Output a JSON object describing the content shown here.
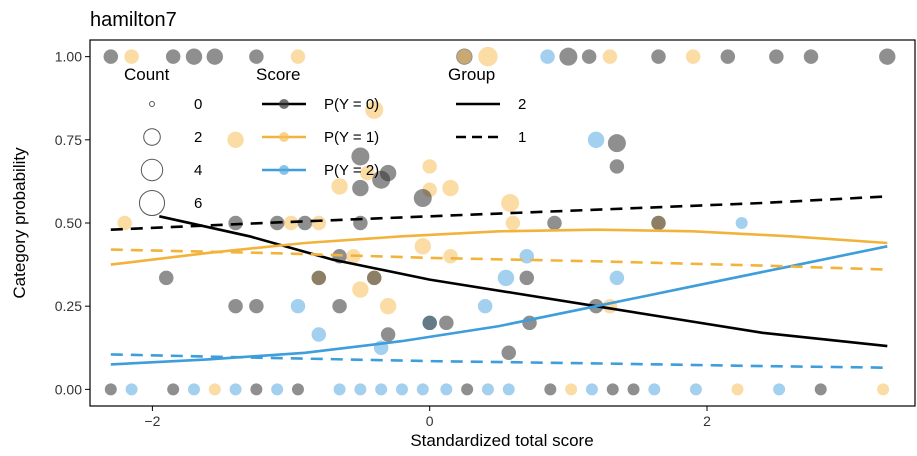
{
  "chart_data": {
    "type": "scatter",
    "title": "hamilton7",
    "xlabel": "Standardized total score",
    "ylabel": "Category probability",
    "xlim": [
      -2.45,
      3.5
    ],
    "ylim": [
      -0.05,
      1.05
    ],
    "x_ticks": [
      {
        "v": -2,
        "label": "−2"
      },
      {
        "v": 0,
        "label": "0"
      },
      {
        "v": 2,
        "label": "2"
      }
    ],
    "y_ticks": [
      {
        "v": 0,
        "label": "0.00"
      },
      {
        "v": 0.25,
        "label": "0.25"
      },
      {
        "v": 0.5,
        "label": "0.50"
      },
      {
        "v": 0.75,
        "label": "0.75"
      },
      {
        "v": 1,
        "label": "1.00"
      }
    ],
    "grid": false,
    "colors": {
      "score0": "#333333",
      "score1": "#f7c05a",
      "score2": "#56a9e0",
      "line0": "#000000",
      "line1": "#f2b33d",
      "line2": "#3e9ddb"
    },
    "legend": {
      "position": "top-left inside",
      "count": {
        "title": "Count",
        "entries": [
          {
            "label": "0",
            "size": 0
          },
          {
            "label": "2",
            "size": 2
          },
          {
            "label": "4",
            "size": 4
          },
          {
            "label": "6",
            "size": 6
          }
        ]
      },
      "score": {
        "title": "Score",
        "entries": [
          {
            "label": "P(Y = 0)",
            "key": "score0"
          },
          {
            "label": "P(Y = 1)",
            "key": "score1"
          },
          {
            "label": "P(Y = 2)",
            "key": "score2"
          }
        ]
      },
      "group": {
        "title": "Group",
        "entries": [
          {
            "label": "2",
            "dash": "solid"
          },
          {
            "label": "1",
            "dash": "dashed"
          }
        ]
      }
    },
    "series": [
      {
        "score": 0,
        "group": 2,
        "dash": "solid",
        "x": [
          -1.95,
          -1.3,
          -0.7,
          0,
          0.6,
          1.2,
          1.8,
          2.4,
          3.3
        ],
        "y": [
          0.52,
          0.46,
          0.39,
          0.33,
          0.29,
          0.25,
          0.21,
          0.17,
          0.13
        ]
      },
      {
        "score": 1,
        "group": 2,
        "dash": "solid",
        "x": [
          -2.3,
          -1.6,
          -0.9,
          -0.2,
          0.5,
          1.2,
          1.9,
          2.6,
          3.3
        ],
        "y": [
          0.375,
          0.41,
          0.44,
          0.46,
          0.475,
          0.48,
          0.475,
          0.46,
          0.44
        ]
      },
      {
        "score": 2,
        "group": 2,
        "dash": "solid",
        "x": [
          -2.3,
          -1.6,
          -0.9,
          -0.2,
          0.5,
          1.2,
          1.9,
          2.6,
          3.3
        ],
        "y": [
          0.075,
          0.09,
          0.11,
          0.145,
          0.19,
          0.25,
          0.31,
          0.37,
          0.43
        ]
      },
      {
        "score": 0,
        "group": 1,
        "dash": "dashed",
        "x": [
          -2.3,
          -1.2,
          0,
          1.2,
          2.4,
          3.3
        ],
        "y": [
          0.48,
          0.5,
          0.52,
          0.54,
          0.56,
          0.58
        ]
      },
      {
        "score": 1,
        "group": 1,
        "dash": "dashed",
        "x": [
          -2.3,
          -1.2,
          0,
          1.2,
          2.4,
          3.3
        ],
        "y": [
          0.42,
          0.41,
          0.395,
          0.385,
          0.372,
          0.36
        ]
      },
      {
        "score": 2,
        "group": 1,
        "dash": "dashed",
        "x": [
          -2.3,
          -1.2,
          0,
          1.2,
          2.4,
          3.3
        ],
        "y": [
          0.105,
          0.095,
          0.085,
          0.078,
          0.07,
          0.065
        ]
      }
    ],
    "points": [
      {
        "x": -2.3,
        "y": 1.0,
        "c": "score0",
        "n": 2
      },
      {
        "x": -2.15,
        "y": 1.0,
        "c": "score1",
        "n": 2
      },
      {
        "x": -1.85,
        "y": 1.0,
        "c": "score0",
        "n": 2
      },
      {
        "x": -1.7,
        "y": 1.0,
        "c": "score0",
        "n": 3
      },
      {
        "x": -1.55,
        "y": 1.0,
        "c": "score0",
        "n": 3
      },
      {
        "x": -1.25,
        "y": 1.0,
        "c": "score0",
        "n": 2
      },
      {
        "x": -0.95,
        "y": 1.0,
        "c": "score1",
        "n": 2
      },
      {
        "x": 0.25,
        "y": 1.0,
        "c": "score0",
        "n": 3
      },
      {
        "x": 0.25,
        "y": 1.0,
        "c": "score1",
        "n": 2
      },
      {
        "x": 0.42,
        "y": 1.0,
        "c": "score1",
        "n": 5
      },
      {
        "x": 0.85,
        "y": 1.0,
        "c": "score2",
        "n": 2
      },
      {
        "x": 1.0,
        "y": 1.0,
        "c": "score0",
        "n": 4
      },
      {
        "x": 1.15,
        "y": 1.0,
        "c": "score0",
        "n": 2
      },
      {
        "x": 1.3,
        "y": 1.0,
        "c": "score1",
        "n": 2
      },
      {
        "x": 1.65,
        "y": 1.0,
        "c": "score0",
        "n": 2
      },
      {
        "x": 1.9,
        "y": 1.0,
        "c": "score1",
        "n": 2
      },
      {
        "x": 2.15,
        "y": 1.0,
        "c": "score0",
        "n": 2
      },
      {
        "x": 2.5,
        "y": 1.0,
        "c": "score0",
        "n": 2
      },
      {
        "x": 2.75,
        "y": 1.0,
        "c": "score0",
        "n": 2
      },
      {
        "x": 3.3,
        "y": 1.0,
        "c": "score0",
        "n": 3
      },
      {
        "x": -0.4,
        "y": 0.84,
        "c": "score1",
        "n": 4
      },
      {
        "x": -1.4,
        "y": 0.75,
        "c": "score1",
        "n": 3
      },
      {
        "x": -0.5,
        "y": 0.7,
        "c": "score0",
        "n": 4
      },
      {
        "x": 0.0,
        "y": 0.67,
        "c": "score1",
        "n": 2
      },
      {
        "x": -0.3,
        "y": 0.65,
        "c": "score0",
        "n": 3
      },
      {
        "x": 1.2,
        "y": 0.75,
        "c": "score2",
        "n": 3
      },
      {
        "x": 1.35,
        "y": 0.74,
        "c": "score0",
        "n": 4
      },
      {
        "x": 1.35,
        "y": 0.67,
        "c": "score0",
        "n": 2
      },
      {
        "x": -0.65,
        "y": 0.61,
        "c": "score1",
        "n": 3
      },
      {
        "x": -0.5,
        "y": 0.605,
        "c": "score0",
        "n": 3
      },
      {
        "x": -0.35,
        "y": 0.63,
        "c": "score0",
        "n": 4
      },
      {
        "x": -0.45,
        "y": 0.65,
        "c": "score1",
        "n": 2
      },
      {
        "x": 0.0,
        "y": 0.6,
        "c": "score1",
        "n": 2
      },
      {
        "x": 0.15,
        "y": 0.605,
        "c": "score1",
        "n": 3
      },
      {
        "x": -0.05,
        "y": 0.575,
        "c": "score0",
        "n": 4
      },
      {
        "x": 0.58,
        "y": 0.56,
        "c": "score1",
        "n": 4
      },
      {
        "x": -2.2,
        "y": 0.5,
        "c": "score1",
        "n": 2
      },
      {
        "x": -1.4,
        "y": 0.5,
        "c": "score0",
        "n": 2
      },
      {
        "x": -1.0,
        "y": 0.5,
        "c": "score1",
        "n": 2
      },
      {
        "x": -1.1,
        "y": 0.5,
        "c": "score0",
        "n": 2
      },
      {
        "x": -0.9,
        "y": 0.5,
        "c": "score0",
        "n": 2
      },
      {
        "x": -0.8,
        "y": 0.5,
        "c": "score1",
        "n": 2
      },
      {
        "x": -0.5,
        "y": 0.5,
        "c": "score0",
        "n": 2
      },
      {
        "x": 0.6,
        "y": 0.5,
        "c": "score1",
        "n": 2
      },
      {
        "x": 0.9,
        "y": 0.5,
        "c": "score0",
        "n": 2
      },
      {
        "x": 1.65,
        "y": 0.5,
        "c": "score1",
        "n": 2
      },
      {
        "x": 1.65,
        "y": 0.5,
        "c": "score0",
        "n": 2
      },
      {
        "x": 2.25,
        "y": 0.5,
        "c": "score2",
        "n": 1
      },
      {
        "x": -0.65,
        "y": 0.4,
        "c": "score0",
        "n": 2
      },
      {
        "x": -0.55,
        "y": 0.4,
        "c": "score1",
        "n": 2
      },
      {
        "x": -0.05,
        "y": 0.43,
        "c": "score1",
        "n": 3
      },
      {
        "x": 0.15,
        "y": 0.4,
        "c": "score1",
        "n": 2
      },
      {
        "x": 0.7,
        "y": 0.4,
        "c": "score2",
        "n": 2
      },
      {
        "x": -1.9,
        "y": 0.335,
        "c": "score0",
        "n": 2
      },
      {
        "x": -0.8,
        "y": 0.335,
        "c": "score1",
        "n": 2
      },
      {
        "x": -0.8,
        "y": 0.335,
        "c": "score0",
        "n": 2
      },
      {
        "x": -0.4,
        "y": 0.335,
        "c": "score1",
        "n": 2
      },
      {
        "x": -0.4,
        "y": 0.335,
        "c": "score0",
        "n": 2
      },
      {
        "x": 0.55,
        "y": 0.335,
        "c": "score2",
        "n": 3
      },
      {
        "x": 0.7,
        "y": 0.335,
        "c": "score0",
        "n": 2
      },
      {
        "x": 1.35,
        "y": 0.335,
        "c": "score2",
        "n": 2
      },
      {
        "x": -0.5,
        "y": 0.3,
        "c": "score1",
        "n": 3
      },
      {
        "x": -1.4,
        "y": 0.25,
        "c": "score0",
        "n": 2
      },
      {
        "x": -1.25,
        "y": 0.25,
        "c": "score0",
        "n": 2
      },
      {
        "x": -0.95,
        "y": 0.25,
        "c": "score2",
        "n": 2
      },
      {
        "x": -0.65,
        "y": 0.25,
        "c": "score0",
        "n": 2
      },
      {
        "x": -0.3,
        "y": 0.25,
        "c": "score1",
        "n": 3
      },
      {
        "x": 0.4,
        "y": 0.25,
        "c": "score2",
        "n": 2
      },
      {
        "x": 1.2,
        "y": 0.25,
        "c": "score0",
        "n": 2
      },
      {
        "x": 1.3,
        "y": 0.25,
        "c": "score1",
        "n": 2
      },
      {
        "x": -0.8,
        "y": 0.165,
        "c": "score2",
        "n": 2
      },
      {
        "x": -0.3,
        "y": 0.165,
        "c": "score0",
        "n": 2
      },
      {
        "x": 0.0,
        "y": 0.2,
        "c": "score2",
        "n": 2
      },
      {
        "x": 0.0,
        "y": 0.2,
        "c": "score0",
        "n": 2
      },
      {
        "x": 0.12,
        "y": 0.2,
        "c": "score0",
        "n": 2
      },
      {
        "x": 0.72,
        "y": 0.2,
        "c": "score0",
        "n": 2
      },
      {
        "x": -0.35,
        "y": 0.125,
        "c": "score2",
        "n": 2
      },
      {
        "x": 0.57,
        "y": 0.11,
        "c": "score0",
        "n": 2
      },
      {
        "x": -2.3,
        "y": 0.0,
        "c": "score0",
        "n": 1
      },
      {
        "x": -2.15,
        "y": 0.0,
        "c": "score2",
        "n": 1
      },
      {
        "x": -1.85,
        "y": 0.0,
        "c": "score0",
        "n": 1
      },
      {
        "x": -1.7,
        "y": 0.0,
        "c": "score2",
        "n": 1
      },
      {
        "x": -1.55,
        "y": 0.0,
        "c": "score1",
        "n": 1
      },
      {
        "x": -1.4,
        "y": 0.0,
        "c": "score2",
        "n": 1
      },
      {
        "x": -1.25,
        "y": 0.0,
        "c": "score0",
        "n": 1
      },
      {
        "x": -1.1,
        "y": 0.0,
        "c": "score2",
        "n": 1
      },
      {
        "x": -0.95,
        "y": 0.0,
        "c": "score0",
        "n": 1
      },
      {
        "x": -0.65,
        "y": 0.0,
        "c": "score2",
        "n": 1
      },
      {
        "x": -0.5,
        "y": 0.0,
        "c": "score2",
        "n": 1
      },
      {
        "x": -0.35,
        "y": 0.0,
        "c": "score2",
        "n": 1
      },
      {
        "x": -0.2,
        "y": 0.0,
        "c": "score2",
        "n": 1
      },
      {
        "x": -0.05,
        "y": 0.0,
        "c": "score2",
        "n": 1
      },
      {
        "x": 0.12,
        "y": 0.0,
        "c": "score2",
        "n": 1
      },
      {
        "x": 0.27,
        "y": 0.0,
        "c": "score0",
        "n": 1
      },
      {
        "x": 0.42,
        "y": 0.0,
        "c": "score2",
        "n": 1
      },
      {
        "x": 0.57,
        "y": 0.0,
        "c": "score2",
        "n": 1
      },
      {
        "x": 0.87,
        "y": 0.0,
        "c": "score0",
        "n": 1
      },
      {
        "x": 1.02,
        "y": 0.0,
        "c": "score1",
        "n": 1
      },
      {
        "x": 1.17,
        "y": 0.0,
        "c": "score2",
        "n": 1
      },
      {
        "x": 1.32,
        "y": 0.0,
        "c": "score0",
        "n": 1
      },
      {
        "x": 1.47,
        "y": 0.0,
        "c": "score0",
        "n": 1
      },
      {
        "x": 1.62,
        "y": 0.0,
        "c": "score2",
        "n": 1
      },
      {
        "x": 1.92,
        "y": 0.0,
        "c": "score2",
        "n": 1
      },
      {
        "x": 2.22,
        "y": 0.0,
        "c": "score1",
        "n": 1
      },
      {
        "x": 2.52,
        "y": 0.0,
        "c": "score2",
        "n": 1
      },
      {
        "x": 2.82,
        "y": 0.0,
        "c": "score0",
        "n": 1
      },
      {
        "x": 3.27,
        "y": 0.0,
        "c": "score1",
        "n": 1
      }
    ]
  }
}
